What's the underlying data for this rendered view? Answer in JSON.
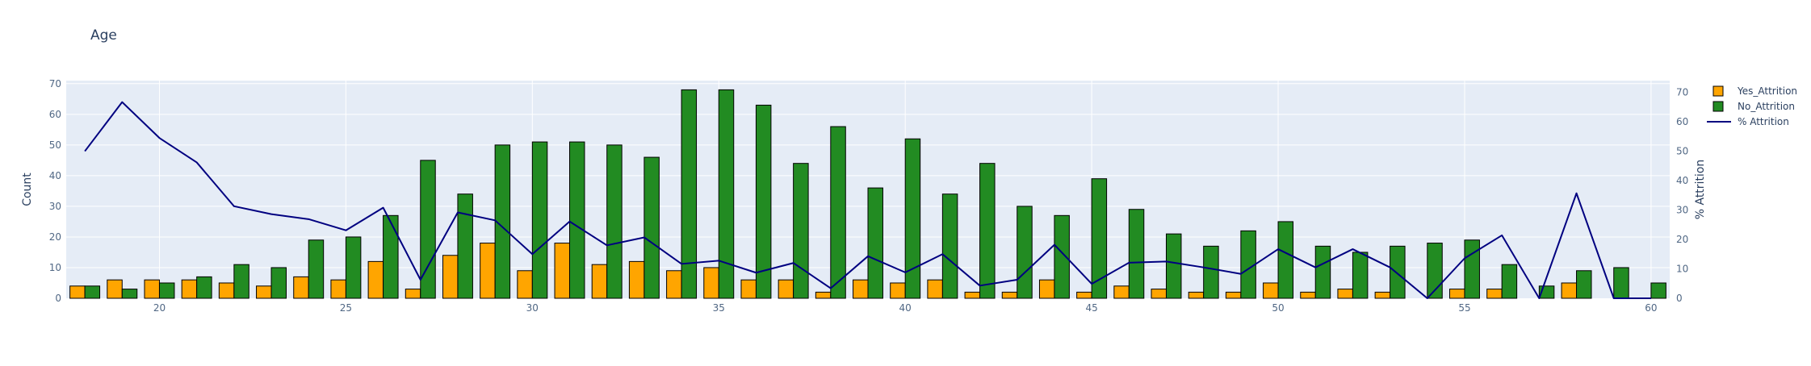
{
  "colors": {
    "yes": "#FFA500",
    "no": "#228B22",
    "line": "#000080",
    "plot_bg": "#E5ECF6",
    "text": "#2A3F5F",
    "tick": "#506784",
    "grid": "#FFFFFF"
  },
  "chart_data": {
    "type": "bar",
    "title": "Age",
    "xlabel": "",
    "ylabel": "Count",
    "y2label": "% Attrition",
    "xlim": [
      17.5,
      60.5
    ],
    "ylim": [
      0,
      71
    ],
    "y2lim": [
      0,
      74
    ],
    "xticks": [
      20,
      25,
      30,
      35,
      40,
      45,
      50,
      55,
      60
    ],
    "yticks": [
      0,
      10,
      20,
      30,
      40,
      50,
      60,
      70
    ],
    "y2ticks": [
      0,
      10,
      20,
      30,
      40,
      50,
      60,
      70
    ],
    "grid": true,
    "legend_position": "top-right",
    "x": [
      18,
      19,
      20,
      21,
      22,
      23,
      24,
      25,
      26,
      27,
      28,
      29,
      30,
      31,
      32,
      33,
      34,
      35,
      36,
      37,
      38,
      39,
      40,
      41,
      42,
      43,
      44,
      45,
      46,
      47,
      48,
      49,
      50,
      51,
      52,
      53,
      54,
      55,
      56,
      57,
      58,
      59,
      60
    ],
    "series": [
      {
        "name": "Yes_Attrition",
        "type": "bar",
        "axis": "left",
        "values": [
          4,
          6,
          6,
          6,
          5,
          4,
          7,
          6,
          12,
          3,
          14,
          18,
          9,
          18,
          11,
          12,
          9,
          10,
          6,
          6,
          2,
          6,
          5,
          6,
          2,
          2,
          6,
          2,
          4,
          3,
          2,
          2,
          5,
          2,
          3,
          2,
          0,
          3,
          3,
          0,
          5,
          0,
          0
        ]
      },
      {
        "name": "No_Attrition",
        "type": "bar",
        "axis": "left",
        "values": [
          4,
          3,
          5,
          7,
          11,
          10,
          19,
          20,
          27,
          45,
          34,
          50,
          51,
          51,
          50,
          46,
          68,
          68,
          63,
          44,
          56,
          36,
          52,
          34,
          44,
          30,
          27,
          39,
          29,
          21,
          17,
          22,
          25,
          17,
          15,
          17,
          18,
          19,
          11,
          4,
          9,
          10,
          5
        ]
      },
      {
        "name": "% Attrition",
        "type": "line",
        "axis": "right",
        "values": [
          50,
          66.7,
          54.5,
          46.2,
          31.3,
          28.6,
          26.9,
          23.1,
          30.8,
          6.3,
          29.2,
          26.5,
          15,
          26.1,
          18,
          20.7,
          11.7,
          12.8,
          8.7,
          12,
          3.4,
          14.3,
          8.8,
          15,
          4.3,
          6.3,
          18.2,
          4.9,
          12.1,
          12.5,
          10.5,
          8.3,
          16.7,
          10.5,
          16.7,
          10.5,
          0,
          13.6,
          21.4,
          0,
          35.7,
          0,
          0
        ]
      }
    ]
  }
}
